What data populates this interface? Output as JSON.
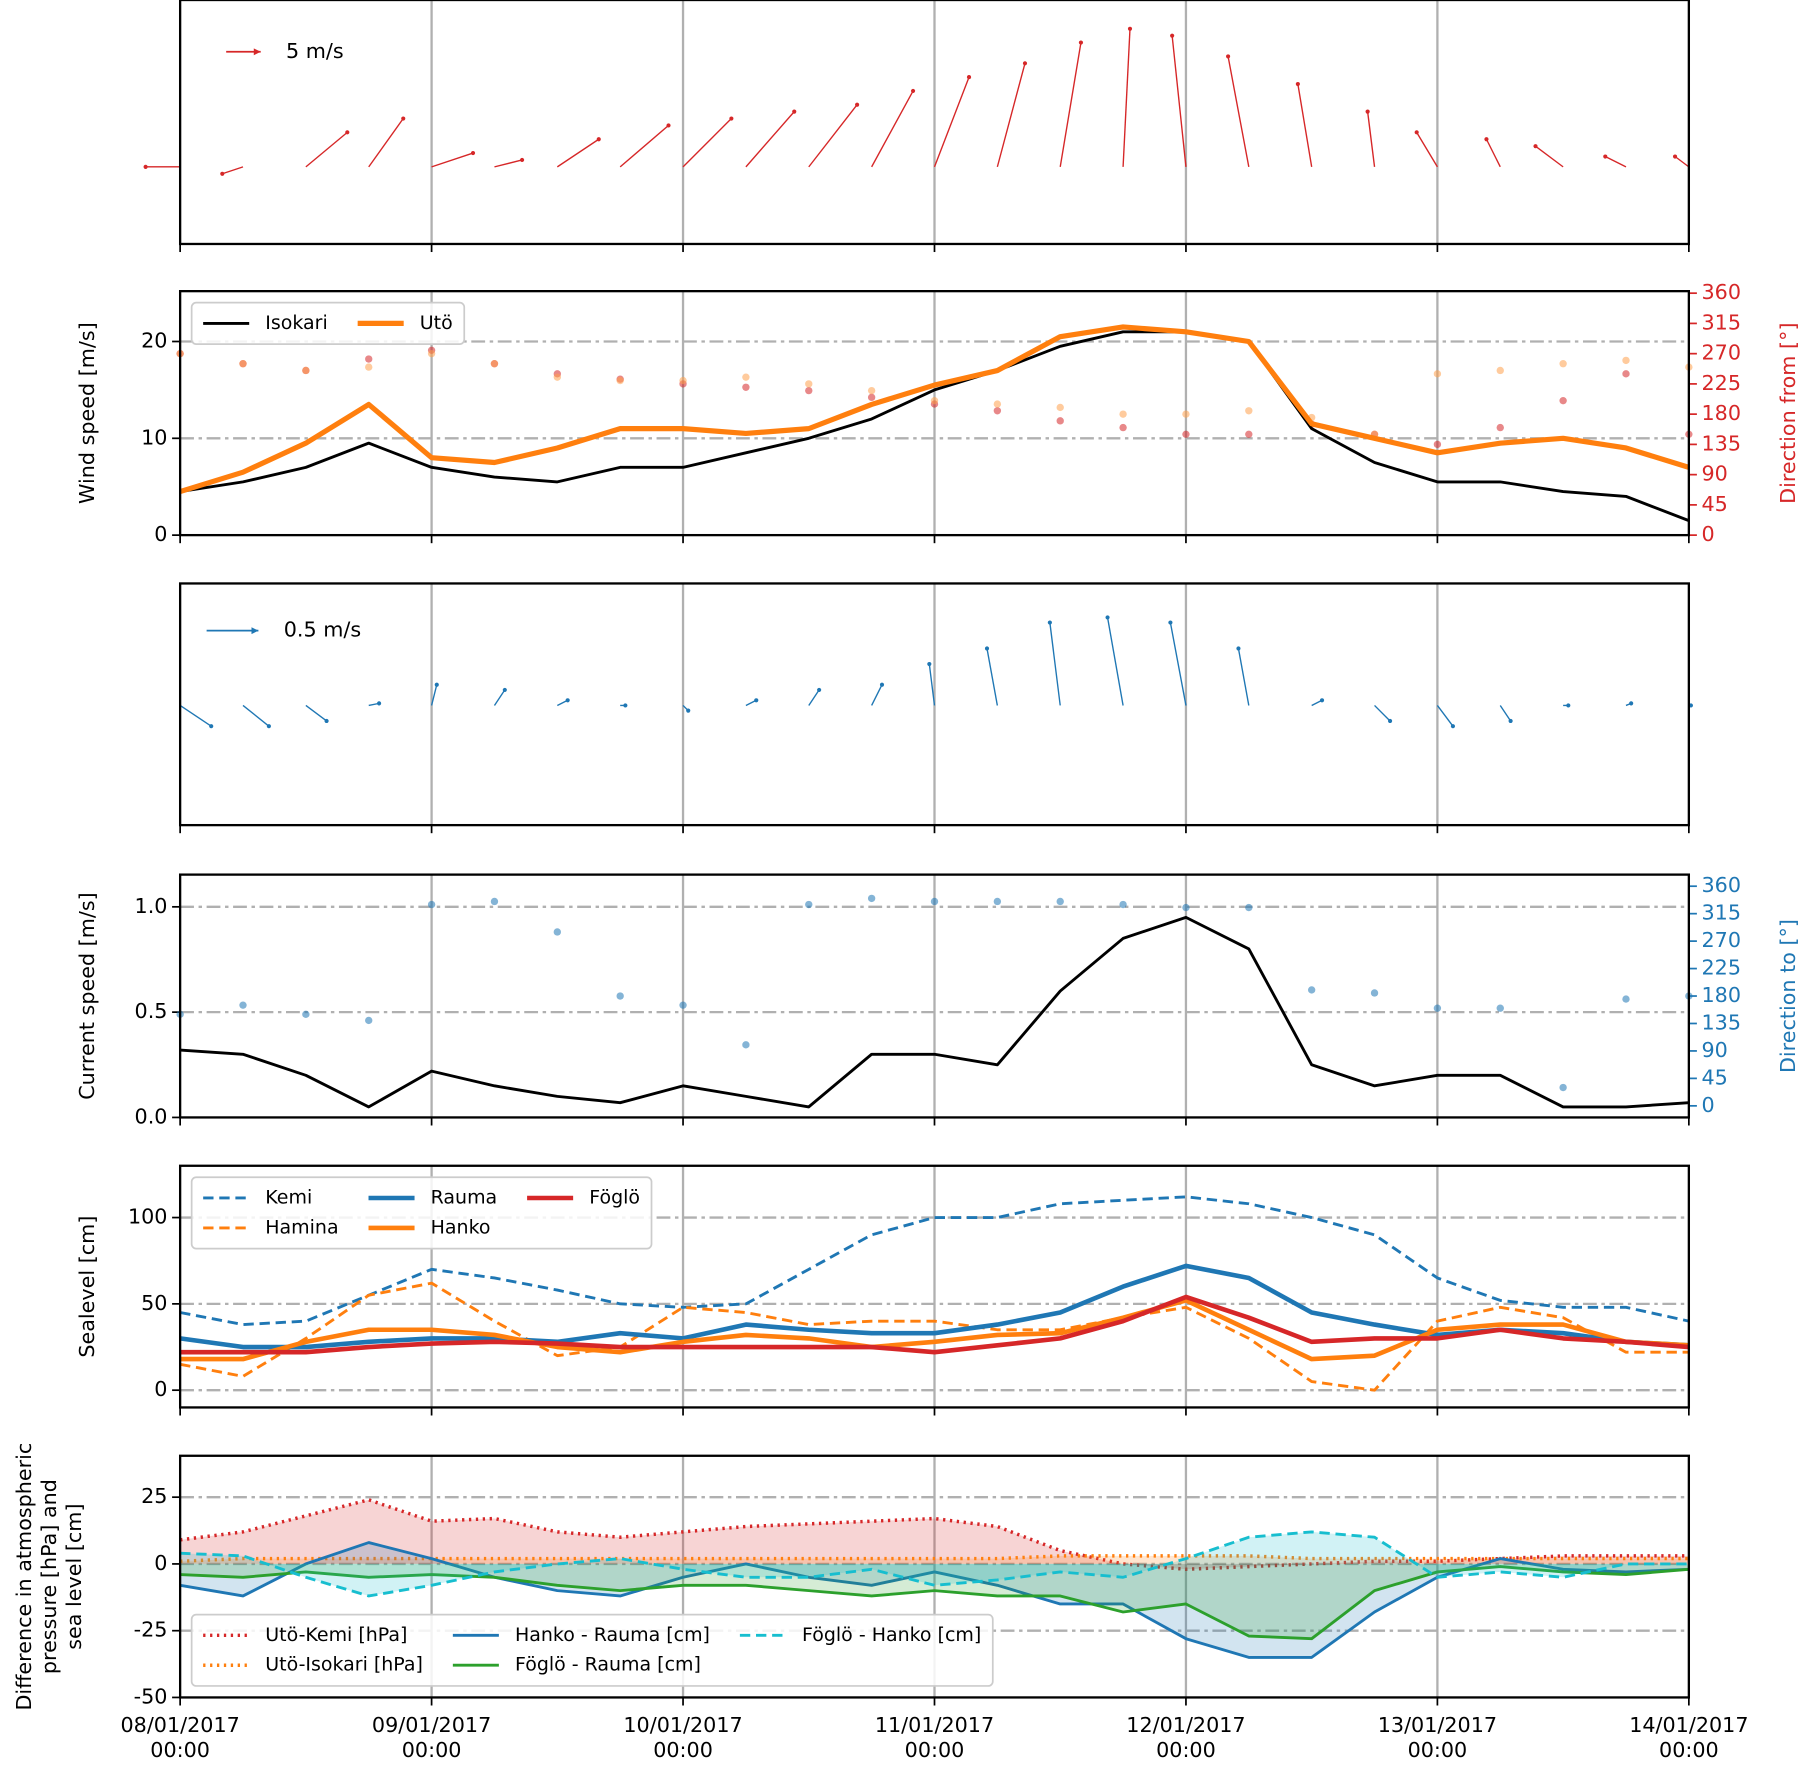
{
  "chart_data": [
    {
      "type": "quiver",
      "color": "#d62728",
      "x": [
        0,
        6,
        12,
        18,
        24,
        30,
        36,
        42,
        48,
        54,
        60,
        66,
        72,
        78,
        84,
        90,
        96,
        102,
        108,
        114,
        120,
        126,
        132,
        138,
        144
      ],
      "u": [
        -5,
        -3,
        6,
        5,
        6,
        4,
        6,
        7,
        7,
        7,
        7,
        6,
        5,
        4,
        3,
        1,
        -2,
        -3,
        -2,
        -1,
        -3,
        -2,
        -4,
        -3,
        -2
      ],
      "v": [
        0,
        -1,
        5,
        7,
        2,
        1,
        4,
        6,
        7,
        8,
        9,
        11,
        13,
        15,
        18,
        20,
        19,
        16,
        12,
        8,
        5,
        4,
        3,
        1.5,
        1.5
      ],
      "key": {
        "value": 5,
        "label": "5 m/s"
      },
      "xlim": [
        0,
        144
      ],
      "xticks": [
        0,
        24,
        48,
        72,
        96,
        120,
        144
      ],
      "grid": true
    },
    {
      "type": "line",
      "x": [
        0,
        6,
        12,
        18,
        24,
        30,
        36,
        42,
        48,
        54,
        60,
        66,
        72,
        78,
        84,
        90,
        96,
        102,
        108,
        114,
        120,
        126,
        132,
        138,
        144
      ],
      "ylabel": "Wind speed [m/s]",
      "y2label": "Direction from [°]",
      "y2color": "#d62728",
      "ylim": [
        0,
        25.2
      ],
      "yticks": [
        0,
        10,
        20
      ],
      "y2lim": [
        0,
        363
      ],
      "y2ticks": [
        0,
        45,
        90,
        135,
        180,
        225,
        270,
        315,
        360
      ],
      "xlim": [
        0,
        144
      ],
      "xticks": [
        0,
        24,
        48,
        72,
        96,
        120,
        144
      ],
      "grid": true,
      "legend": "upper left",
      "legend_columns": 2,
      "series": [
        {
          "axis": "y2",
          "marker": "dot",
          "color": "#d62728",
          "values": [
            270,
            255,
            245,
            262,
            275,
            255,
            240,
            232,
            225,
            220,
            215,
            205,
            195,
            185,
            170,
            160,
            150,
            150,
            165,
            150,
            135,
            160,
            200,
            240,
            150
          ]
        },
        {
          "axis": "y2",
          "marker": "dot",
          "color": "#ffa04d",
          "values": [
            270,
            255,
            245,
            250,
            270,
            255,
            235,
            230,
            230,
            235,
            225,
            215,
            200,
            195,
            190,
            180,
            180,
            185,
            175,
            150,
            240,
            245,
            255,
            260,
            250
          ]
        },
        {
          "name": "Isokari",
          "color": "#000000",
          "width": 2.5,
          "values": [
            4.5,
            5.5,
            7,
            9.5,
            7,
            6,
            5.5,
            7,
            7,
            8.5,
            10,
            12,
            15,
            17,
            19.5,
            21,
            21,
            20,
            11,
            7.5,
            5.5,
            5.5,
            4.5,
            4,
            1.5
          ]
        },
        {
          "name": "Utö",
          "color": "#ff7f0e",
          "width": 4.5,
          "values": [
            4.5,
            6.5,
            9.5,
            13.5,
            8,
            7.5,
            9,
            11,
            11,
            10.5,
            11,
            13.5,
            15.5,
            17,
            20.5,
            21.5,
            21,
            20,
            11.5,
            10,
            8.5,
            9.5,
            10,
            9,
            7
          ]
        }
      ]
    },
    {
      "type": "quiver",
      "color": "#1f77b4",
      "x": [
        0,
        6,
        12,
        18,
        24,
        30,
        36,
        42,
        48,
        54,
        60,
        66,
        72,
        78,
        84,
        90,
        96,
        102,
        108,
        114,
        120,
        126,
        132,
        138,
        144
      ],
      "u": [
        0.3,
        0.25,
        0.2,
        0.1,
        0.05,
        0.1,
        0.1,
        0.05,
        0.05,
        0.1,
        0.1,
        0.1,
        -0.05,
        -0.1,
        -0.1,
        -0.15,
        -0.15,
        -0.1,
        0.1,
        0.15,
        0.15,
        0.1,
        0.05,
        0.05,
        0.02
      ],
      "v": [
        -0.2,
        -0.2,
        -0.15,
        0.02,
        0.2,
        0.15,
        0.05,
        0,
        -0.05,
        0.05,
        0.15,
        0.2,
        0.4,
        0.55,
        0.8,
        0.85,
        0.8,
        0.55,
        0.05,
        -0.15,
        -0.2,
        -0.15,
        0,
        0.02,
        0
      ],
      "key": {
        "value": 0.5,
        "label": "0.5 m/s"
      },
      "xlim": [
        0,
        144
      ],
      "xticks": [
        0,
        24,
        48,
        72,
        96,
        120,
        144
      ],
      "grid": true
    },
    {
      "type": "line",
      "x": [
        0,
        6,
        12,
        18,
        24,
        30,
        36,
        42,
        48,
        54,
        60,
        66,
        72,
        78,
        84,
        90,
        96,
        102,
        108,
        114,
        120,
        126,
        132,
        138,
        144
      ],
      "ylabel": "Current speed [m/s]",
      "y2label": "Direction to [°]",
      "y2color": "#1f77b4",
      "ylim": [
        0,
        1.153
      ],
      "yticks": [
        {
          "value": 0,
          "label": "0.0"
        },
        0.5,
        {
          "value": 1,
          "label": "1.0"
        }
      ],
      "y2lim": [
        -19,
        379
      ],
      "y2ticks": [
        0,
        45,
        90,
        135,
        180,
        225,
        270,
        315,
        360
      ],
      "xlim": [
        0,
        144
      ],
      "xticks": [
        0,
        24,
        48,
        72,
        96,
        120,
        144
      ],
      "grid": true,
      "series": [
        {
          "axis": "y2",
          "marker": "dot",
          "color": "#1f77b4",
          "values": [
            150,
            165,
            150,
            140,
            330,
            335,
            285,
            180,
            165,
            100,
            330,
            340,
            335,
            335,
            335,
            330,
            325,
            325,
            190,
            185,
            160,
            160,
            30,
            175,
            180
          ]
        },
        {
          "color": "#000000",
          "width": 2.5,
          "values": [
            0.32,
            0.3,
            0.2,
            0.05,
            0.22,
            0.15,
            0.1,
            0.07,
            0.15,
            0.1,
            0.05,
            0.3,
            0.3,
            0.25,
            0.6,
            0.85,
            0.95,
            0.8,
            0.25,
            0.15,
            0.2,
            0.2,
            0.05,
            0.05,
            0.07
          ]
        }
      ]
    },
    {
      "type": "line",
      "x": [
        0,
        6,
        12,
        18,
        24,
        30,
        36,
        42,
        48,
        54,
        60,
        66,
        72,
        78,
        84,
        90,
        96,
        102,
        108,
        114,
        120,
        126,
        132,
        138,
        144
      ],
      "ylabel": "Sealevel [cm]",
      "ylim": [
        -10,
        130
      ],
      "yticks": [
        0,
        50,
        100
      ],
      "xlim": [
        0,
        144
      ],
      "xticks": [
        0,
        24,
        48,
        72,
        96,
        120,
        144
      ],
      "grid": true,
      "legend": "upper left",
      "legend_columns": 3,
      "series": [
        {
          "name": "Kemi",
          "color": "#1f77b4",
          "linestyle": "dashed",
          "width": 2.5,
          "values": [
            45,
            38,
            40,
            55,
            70,
            65,
            58,
            50,
            48,
            50,
            70,
            90,
            100,
            100,
            108,
            110,
            112,
            108,
            100,
            90,
            65,
            52,
            48,
            48,
            40
          ]
        },
        {
          "name": "Hamina",
          "color": "#ff7f0e",
          "linestyle": "dashed",
          "width": 2.5,
          "values": [
            15,
            8,
            30,
            55,
            62,
            40,
            20,
            25,
            48,
            45,
            38,
            40,
            40,
            35,
            35,
            42,
            48,
            30,
            5,
            0,
            40,
            48,
            42,
            22,
            22
          ]
        },
        {
          "name": "Rauma",
          "color": "#1f77b4",
          "width": 4,
          "values": [
            30,
            25,
            25,
            28,
            30,
            30,
            28,
            33,
            30,
            38,
            35,
            33,
            33,
            38,
            45,
            60,
            72,
            65,
            45,
            38,
            32,
            35,
            33,
            28,
            26
          ]
        },
        {
          "name": "Hanko",
          "color": "#ff7f0e",
          "width": 4,
          "values": [
            18,
            18,
            28,
            35,
            35,
            32,
            25,
            22,
            28,
            32,
            30,
            25,
            28,
            32,
            33,
            42,
            52,
            35,
            18,
            20,
            35,
            38,
            38,
            28,
            26
          ]
        },
        {
          "name": "Föglö",
          "color": "#d62728",
          "width": 4,
          "values": [
            22,
            22,
            22,
            25,
            27,
            28,
            27,
            25,
            25,
            25,
            25,
            25,
            22,
            26,
            30,
            40,
            54,
            42,
            28,
            30,
            30,
            35,
            30,
            28,
            25
          ]
        }
      ]
    },
    {
      "type": "line",
      "x": [
        0,
        6,
        12,
        18,
        24,
        30,
        36,
        42,
        48,
        54,
        60,
        66,
        72,
        78,
        84,
        90,
        96,
        102,
        108,
        114,
        120,
        126,
        132,
        138,
        144
      ],
      "ylabel": "Difference in atmospheric\npressure [hPa] and\nsea level [cm]",
      "ylim": [
        -50,
        40.5
      ],
      "yticks": [
        -50,
        -25,
        0,
        25
      ],
      "xlim": [
        0,
        144
      ],
      "xticks": [
        {
          "value": 0,
          "label": "08/01/2017\n00:00"
        },
        {
          "value": 24,
          "label": "09/01/2017\n00:00"
        },
        {
          "value": 48,
          "label": "10/01/2017\n00:00"
        },
        {
          "value": 72,
          "label": "11/01/2017\n00:00"
        },
        {
          "value": 96,
          "label": "12/01/2017\n00:00"
        },
        {
          "value": 120,
          "label": "13/01/2017\n00:00"
        },
        {
          "value": 144,
          "label": "14/01/2017\n00:00"
        }
      ],
      "grid": true,
      "legend": "lower left",
      "legend_columns": 3,
      "series": [
        {
          "name": "Utö-Kemi [hPa]",
          "color": "#d62728",
          "linestyle": "dotted",
          "width": 3,
          "fill": true,
          "values": [
            9,
            12,
            18,
            24,
            16,
            17,
            12,
            10,
            12,
            14,
            15,
            16,
            17,
            14,
            5,
            0,
            -2,
            -1,
            0,
            1,
            1,
            2,
            3,
            3,
            3
          ]
        },
        {
          "name": "Utö-Isokari [hPa]",
          "color": "#ff7f0e",
          "linestyle": "dotted",
          "width": 3,
          "fill": true,
          "values": [
            1,
            2,
            2,
            2,
            2,
            2,
            2,
            2,
            2,
            2,
            2,
            2,
            2,
            2,
            3,
            3,
            3,
            3,
            2,
            2,
            2,
            2,
            2,
            2,
            2
          ]
        },
        {
          "name": "Hanko - Rauma [cm]",
          "color": "#1f77b4",
          "width": 2.5,
          "fill": true,
          "values": [
            -8,
            -12,
            0,
            8,
            2,
            -5,
            -10,
            -12,
            -5,
            0,
            -5,
            -8,
            -3,
            -8,
            -15,
            -15,
            -28,
            -35,
            -35,
            -18,
            -5,
            2,
            -2,
            -3,
            -2
          ]
        },
        {
          "name": "Föglö - Rauma [cm]",
          "color": "#2ca02c",
          "width": 2.5,
          "fill": true,
          "values": [
            -4,
            -5,
            -3,
            -5,
            -4,
            -5,
            -8,
            -10,
            -8,
            -8,
            -10,
            -12,
            -10,
            -12,
            -12,
            -18,
            -15,
            -27,
            -28,
            -10,
            -3,
            -1,
            -3,
            -4,
            -2
          ]
        },
        {
          "name": "Föglö - Hanko [cm]",
          "color": "#17becf",
          "linestyle": "dashed",
          "width": 2.5,
          "fill": true,
          "values": [
            4,
            3,
            -5,
            -12,
            -8,
            -3,
            0,
            2,
            -2,
            -5,
            -5,
            -2,
            -8,
            -6,
            -3,
            -5,
            2,
            10,
            12,
            10,
            -5,
            -3,
            -5,
            0,
            0
          ]
        }
      ]
    }
  ]
}
